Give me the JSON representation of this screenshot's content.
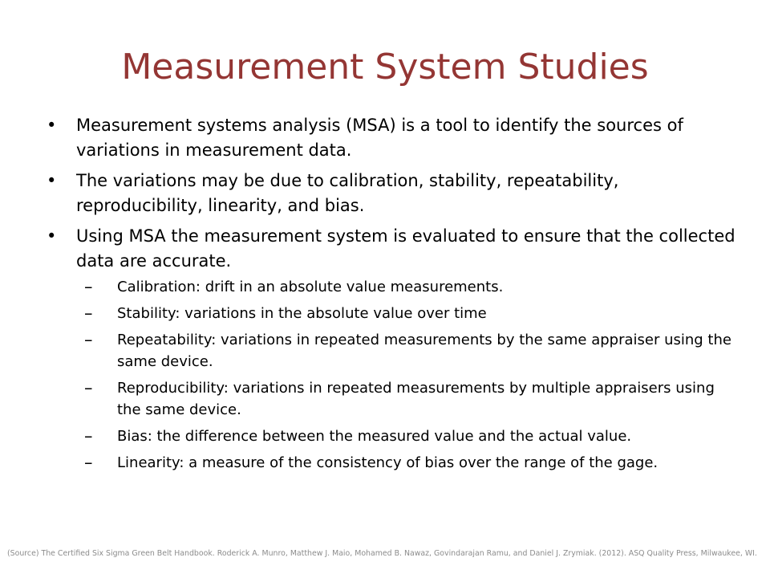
{
  "slide": {
    "title": "Measurement System Studies",
    "accent_color": "#943634",
    "bullets": [
      {
        "marker": "•",
        "text": "Measurement systems analysis (MSA) is a tool to identify the sources of variations in measurement data."
      },
      {
        "marker": "•",
        "text": "The variations may be due to calibration, stability, repeatability, reproducibility, linearity, and bias."
      },
      {
        "marker": "•",
        "text": "Using MSA the measurement system is evaluated to ensure that the collected data are accurate."
      }
    ],
    "sub_bullets": [
      {
        "marker": "–",
        "text": "Calibration: drift in an absolute value measurements."
      },
      {
        "marker": "–",
        "text": "Stability: variations in the absolute value over time"
      },
      {
        "marker": "–",
        "text": "Repeatability: variations in repeated measurements by the same appraiser using the same device."
      },
      {
        "marker": "–",
        "text": "Reproducibility: variations in repeated measurements by multiple appraisers using the same device."
      },
      {
        "marker": "–",
        "text": "Bias: the difference between the measured value and the actual value."
      },
      {
        "marker": "–",
        "text": "Linearity: a measure of the consistency of bias over the range of the gage."
      }
    ],
    "source": "(Source) The Certified Six Sigma Green Belt Handbook. Roderick A. Munro, Matthew J. Maio, Mohamed B. Nawaz, Govindarajan Ramu, and Daniel J. Zrymiak. (2012). ASQ Quality Press, Milwaukee, WI."
  }
}
